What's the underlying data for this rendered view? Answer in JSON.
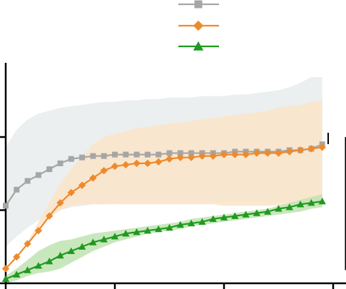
{
  "chart_data": {
    "type": "line",
    "title": "",
    "xlabel": "",
    "ylabel": "",
    "xlim": [
      0,
      30
    ],
    "ylim": [
      0,
      1
    ],
    "x_ticks": [
      0,
      10,
      20,
      30
    ],
    "y_ticks": [
      0,
      0.5,
      1
    ],
    "grid": false,
    "legend": {
      "placement": "top-center",
      "show_text": false
    },
    "colors": {
      "gray": "#a6a6a6",
      "orange": "#ee8a2c",
      "green": "#1f9a1f",
      "gray_band": "#e9eded",
      "orange_band": "#fbe4c8",
      "green_band": "#bfe3b2"
    },
    "series": [
      {
        "marker": "square",
        "color": "#a6a6a6",
        "x": [
          0,
          1,
          2,
          3,
          4,
          5,
          6,
          7,
          8,
          9,
          10,
          11,
          12,
          13,
          14,
          15,
          16,
          17,
          18,
          19,
          20,
          21,
          22,
          23,
          24,
          25,
          26,
          27,
          28,
          29
        ],
        "values": [
          0.53,
          0.64,
          0.7,
          0.74,
          0.78,
          0.82,
          0.85,
          0.86,
          0.87,
          0.87,
          0.88,
          0.88,
          0.88,
          0.88,
          0.88,
          0.89,
          0.89,
          0.89,
          0.89,
          0.89,
          0.89,
          0.9,
          0.9,
          0.9,
          0.9,
          0.9,
          0.91,
          0.91,
          0.92,
          0.95
        ],
        "band_low": [
          0.25,
          0.32,
          0.38,
          0.43,
          0.47,
          0.5,
          0.52,
          0.53,
          0.54,
          0.54,
          0.55,
          0.55,
          0.55,
          0.55,
          0.55,
          0.55,
          0.55,
          0.55,
          0.55,
          0.55,
          0.55,
          0.55,
          0.55,
          0.55,
          0.55,
          0.55,
          0.55,
          0.55,
          0.55,
          0.56
        ],
        "band_high": [
          0.93,
          1.05,
          1.12,
          1.16,
          1.18,
          1.2,
          1.21,
          1.22,
          1.23,
          1.24,
          1.24,
          1.25,
          1.25,
          1.26,
          1.26,
          1.27,
          1.27,
          1.27,
          1.28,
          1.28,
          1.28,
          1.29,
          1.29,
          1.3,
          1.31,
          1.32,
          1.34,
          1.37,
          1.41,
          1.41
        ]
      },
      {
        "marker": "diamond",
        "color": "#ee8a2c",
        "x": [
          0,
          1,
          2,
          3,
          4,
          5,
          6,
          7,
          8,
          9,
          10,
          11,
          12,
          13,
          14,
          15,
          16,
          17,
          18,
          19,
          20,
          21,
          22,
          23,
          24,
          25,
          26,
          27,
          28,
          29
        ],
        "values": [
          0.1,
          0.18,
          0.27,
          0.36,
          0.46,
          0.55,
          0.62,
          0.67,
          0.72,
          0.77,
          0.8,
          0.81,
          0.82,
          0.82,
          0.83,
          0.85,
          0.86,
          0.86,
          0.87,
          0.87,
          0.88,
          0.88,
          0.88,
          0.89,
          0.89,
          0.89,
          0.9,
          0.91,
          0.92,
          0.93
        ],
        "band_low": [
          0.1,
          0.18,
          0.28,
          0.36,
          0.45,
          0.5,
          0.53,
          0.54,
          0.54,
          0.54,
          0.54,
          0.54,
          0.54,
          0.54,
          0.54,
          0.54,
          0.54,
          0.54,
          0.54,
          0.54,
          0.53,
          0.53,
          0.53,
          0.53,
          0.53,
          0.53,
          0.53,
          0.53,
          0.53,
          0.53
        ],
        "band_high": [
          0.1,
          0.18,
          0.28,
          0.42,
          0.55,
          0.68,
          0.78,
          0.87,
          0.95,
          1.0,
          1.02,
          1.04,
          1.06,
          1.07,
          1.08,
          1.09,
          1.1,
          1.11,
          1.12,
          1.13,
          1.14,
          1.15,
          1.16,
          1.17,
          1.18,
          1.2,
          1.21,
          1.22,
          1.24,
          1.25
        ]
      },
      {
        "marker": "triangle",
        "color": "#1f9a1f",
        "x": [
          0,
          1,
          2,
          3,
          4,
          5,
          6,
          7,
          8,
          9,
          10,
          11,
          12,
          13,
          14,
          15,
          16,
          17,
          18,
          19,
          20,
          21,
          22,
          23,
          24,
          25,
          26,
          27,
          28,
          29
        ],
        "values": [
          0.03,
          0.06,
          0.09,
          0.12,
          0.15,
          0.19,
          0.22,
          0.25,
          0.28,
          0.3,
          0.32,
          0.34,
          0.35,
          0.36,
          0.37,
          0.38,
          0.4,
          0.41,
          0.42,
          0.44,
          0.45,
          0.46,
          0.47,
          0.48,
          0.49,
          0.51,
          0.52,
          0.54,
          0.55,
          0.56
        ],
        "band_low": [
          0.0,
          0.02,
          0.05,
          0.07,
          0.08,
          0.1,
          0.14,
          0.18,
          0.22,
          0.25,
          0.28,
          0.3,
          0.32,
          0.34,
          0.35,
          0.36,
          0.37,
          0.39,
          0.4,
          0.41,
          0.42,
          0.43,
          0.44,
          0.45,
          0.46,
          0.47,
          0.48,
          0.49,
          0.51,
          0.52
        ],
        "band_high": [
          0.05,
          0.1,
          0.16,
          0.22,
          0.26,
          0.29,
          0.3,
          0.32,
          0.34,
          0.35,
          0.36,
          0.37,
          0.38,
          0.39,
          0.4,
          0.41,
          0.42,
          0.44,
          0.45,
          0.46,
          0.47,
          0.48,
          0.49,
          0.5,
          0.51,
          0.53,
          0.55,
          0.57,
          0.59,
          0.61
        ]
      }
    ],
    "side_bracket": {
      "y_from": 0.5,
      "y_to": 1.0,
      "label": ""
    }
  }
}
